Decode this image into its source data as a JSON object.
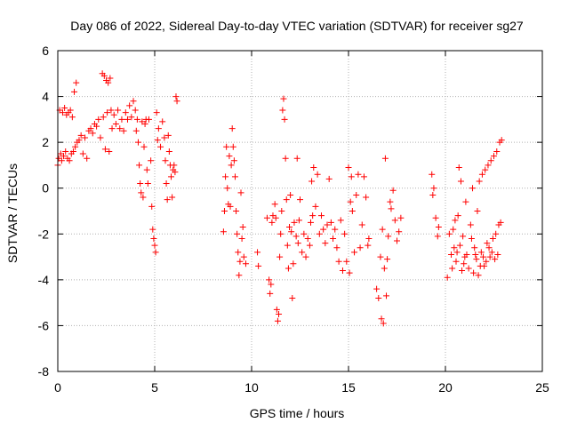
{
  "chart_data": {
    "type": "scatter",
    "title": "Day 086 of 2022, Sidereal Day-to-day VTEC variation (SDTVAR) for receiver sg27",
    "xlabel": "GPS time / hours",
    "ylabel": "SDTVAR / TECUs",
    "xlim": [
      0,
      25
    ],
    "ylim": [
      -8,
      6
    ],
    "xticks": [
      0,
      5,
      10,
      15,
      20,
      25
    ],
    "yticks": [
      -8,
      -6,
      -4,
      -2,
      0,
      2,
      4,
      6
    ],
    "grid": true,
    "marker": "plus",
    "color": "#ff0000",
    "series": [
      {
        "name": "SDTVAR",
        "points": [
          [
            0.0,
            1.0
          ],
          [
            0.05,
            1.3
          ],
          [
            0.1,
            3.4
          ],
          [
            0.15,
            1.5
          ],
          [
            0.2,
            1.2
          ],
          [
            0.25,
            3.3
          ],
          [
            0.3,
            1.4
          ],
          [
            0.35,
            3.5
          ],
          [
            0.4,
            1.6
          ],
          [
            0.45,
            3.2
          ],
          [
            0.5,
            1.3
          ],
          [
            0.55,
            3.3
          ],
          [
            0.6,
            1.2
          ],
          [
            0.65,
            3.4
          ],
          [
            0.7,
            1.5
          ],
          [
            0.75,
            3.1
          ],
          [
            0.8,
            1.6
          ],
          [
            0.85,
            4.2
          ],
          [
            0.9,
            1.8
          ],
          [
            0.95,
            4.6
          ],
          [
            1.0,
            2.0
          ],
          [
            1.1,
            2.1
          ],
          [
            1.2,
            2.3
          ],
          [
            1.3,
            1.5
          ],
          [
            1.4,
            2.2
          ],
          [
            1.5,
            1.3
          ],
          [
            1.6,
            2.5
          ],
          [
            1.7,
            2.6
          ],
          [
            1.8,
            2.4
          ],
          [
            1.9,
            2.8
          ],
          [
            2.0,
            2.7
          ],
          [
            2.1,
            3.0
          ],
          [
            2.2,
            2.2
          ],
          [
            2.3,
            5.0
          ],
          [
            2.35,
            3.1
          ],
          [
            2.4,
            4.9
          ],
          [
            2.45,
            1.7
          ],
          [
            2.5,
            4.7
          ],
          [
            2.55,
            3.3
          ],
          [
            2.6,
            4.6
          ],
          [
            2.65,
            1.6
          ],
          [
            2.7,
            4.8
          ],
          [
            2.75,
            3.4
          ],
          [
            2.8,
            2.6
          ],
          [
            2.9,
            3.2
          ],
          [
            3.0,
            2.8
          ],
          [
            3.1,
            3.4
          ],
          [
            3.2,
            2.6
          ],
          [
            3.3,
            3.0
          ],
          [
            3.4,
            2.5
          ],
          [
            3.5,
            3.3
          ],
          [
            3.6,
            3.0
          ],
          [
            3.7,
            3.6
          ],
          [
            3.8,
            3.1
          ],
          [
            3.9,
            3.8
          ],
          [
            4.0,
            3.4
          ],
          [
            4.05,
            2.5
          ],
          [
            4.1,
            3.0
          ],
          [
            4.15,
            2.0
          ],
          [
            4.2,
            1.0
          ],
          [
            4.25,
            0.2
          ],
          [
            4.3,
            -0.2
          ],
          [
            4.35,
            2.9
          ],
          [
            4.4,
            -0.4
          ],
          [
            4.45,
            1.8
          ],
          [
            4.5,
            2.8
          ],
          [
            4.55,
            3.0
          ],
          [
            4.6,
            0.8
          ],
          [
            4.65,
            0.2
          ],
          [
            4.7,
            3.0
          ],
          [
            4.8,
            1.2
          ],
          [
            4.85,
            -0.8
          ],
          [
            4.9,
            -1.8
          ],
          [
            4.95,
            -2.2
          ],
          [
            5.0,
            -2.5
          ],
          [
            5.05,
            -2.8
          ],
          [
            5.1,
            3.3
          ],
          [
            5.15,
            2.1
          ],
          [
            5.2,
            2.6
          ],
          [
            5.3,
            1.8
          ],
          [
            5.4,
            2.9
          ],
          [
            5.5,
            2.2
          ],
          [
            5.55,
            1.2
          ],
          [
            5.6,
            0.2
          ],
          [
            5.65,
            -0.5
          ],
          [
            5.7,
            2.3
          ],
          [
            5.75,
            1.6
          ],
          [
            5.8,
            1.0
          ],
          [
            5.85,
            0.5
          ],
          [
            5.9,
            -0.4
          ],
          [
            5.95,
            0.8
          ],
          [
            6.0,
            1.0
          ],
          [
            6.05,
            0.7
          ],
          [
            6.1,
            4.0
          ],
          [
            6.15,
            3.8
          ],
          [
            8.55,
            -1.9
          ],
          [
            8.6,
            -1.0
          ],
          [
            8.65,
            0.5
          ],
          [
            8.7,
            1.8
          ],
          [
            8.75,
            0.0
          ],
          [
            8.8,
            -0.7
          ],
          [
            8.85,
            1.4
          ],
          [
            8.9,
            -0.8
          ],
          [
            8.95,
            1.0
          ],
          [
            9.0,
            2.6
          ],
          [
            9.05,
            1.8
          ],
          [
            9.1,
            1.2
          ],
          [
            9.15,
            0.5
          ],
          [
            9.2,
            -1.0
          ],
          [
            9.25,
            -2.0
          ],
          [
            9.3,
            -2.8
          ],
          [
            9.35,
            -3.8
          ],
          [
            9.4,
            -3.2
          ],
          [
            9.45,
            -0.2
          ],
          [
            9.5,
            -2.2
          ],
          [
            9.55,
            -1.7
          ],
          [
            9.6,
            -3.0
          ],
          [
            9.7,
            -3.3
          ],
          [
            10.3,
            -2.8
          ],
          [
            10.35,
            -3.4
          ],
          [
            10.8,
            -1.3
          ],
          [
            10.9,
            -4.0
          ],
          [
            10.95,
            -4.6
          ],
          [
            11.0,
            -4.2
          ],
          [
            11.05,
            -1.5
          ],
          [
            11.1,
            -1.2
          ],
          [
            11.2,
            -0.7
          ],
          [
            11.25,
            -1.3
          ],
          [
            11.3,
            -5.3
          ],
          [
            11.35,
            -5.8
          ],
          [
            11.4,
            -5.5
          ],
          [
            11.45,
            -3.0
          ],
          [
            11.5,
            -2.0
          ],
          [
            11.55,
            -1.0
          ],
          [
            11.6,
            3.4
          ],
          [
            11.65,
            3.9
          ],
          [
            11.7,
            3.0
          ],
          [
            11.75,
            1.3
          ],
          [
            11.8,
            -0.5
          ],
          [
            11.85,
            -2.5
          ],
          [
            11.9,
            -3.5
          ],
          [
            11.95,
            -1.7
          ],
          [
            12.0,
            -0.3
          ],
          [
            12.05,
            -1.9
          ],
          [
            12.1,
            -4.8
          ],
          [
            12.15,
            -3.3
          ],
          [
            12.2,
            -1.5
          ],
          [
            12.3,
            -2.1
          ],
          [
            12.35,
            1.3
          ],
          [
            12.4,
            -2.4
          ],
          [
            12.45,
            -1.4
          ],
          [
            12.5,
            -0.5
          ],
          [
            12.6,
            -2.8
          ],
          [
            12.7,
            -2.0
          ],
          [
            12.8,
            -3.0
          ],
          [
            12.9,
            -2.2
          ],
          [
            13.0,
            -2.5
          ],
          [
            13.05,
            -1.5
          ],
          [
            13.1,
            0.3
          ],
          [
            13.15,
            -1.2
          ],
          [
            13.2,
            0.9
          ],
          [
            13.3,
            -0.8
          ],
          [
            13.4,
            0.6
          ],
          [
            13.5,
            -2.0
          ],
          [
            13.6,
            -1.2
          ],
          [
            13.7,
            -1.8
          ],
          [
            13.8,
            -2.4
          ],
          [
            13.9,
            -1.6
          ],
          [
            14.0,
            0.4
          ],
          [
            14.1,
            -1.5
          ],
          [
            14.2,
            -2.2
          ],
          [
            14.3,
            -1.8
          ],
          [
            14.4,
            -2.6
          ],
          [
            14.5,
            -3.2
          ],
          [
            14.6,
            -1.4
          ],
          [
            14.7,
            -3.6
          ],
          [
            14.8,
            -2.0
          ],
          [
            14.9,
            -3.2
          ],
          [
            15.0,
            0.9
          ],
          [
            15.05,
            -3.7
          ],
          [
            15.1,
            -0.6
          ],
          [
            15.15,
            0.5
          ],
          [
            15.2,
            -1.0
          ],
          [
            15.3,
            -2.8
          ],
          [
            15.4,
            -0.3
          ],
          [
            15.5,
            0.6
          ],
          [
            15.6,
            -2.6
          ],
          [
            15.7,
            -1.6
          ],
          [
            15.8,
            0.5
          ],
          [
            15.9,
            -0.4
          ],
          [
            16.0,
            -2.5
          ],
          [
            16.05,
            -2.2
          ],
          [
            16.45,
            -4.4
          ],
          [
            16.55,
            -4.8
          ],
          [
            16.65,
            -3.0
          ],
          [
            16.7,
            -5.7
          ],
          [
            16.75,
            -1.8
          ],
          [
            16.8,
            -5.9
          ],
          [
            16.85,
            -3.5
          ],
          [
            16.9,
            1.3
          ],
          [
            16.95,
            -4.7
          ],
          [
            17.0,
            -3.1
          ],
          [
            17.05,
            -2.1
          ],
          [
            17.15,
            -0.6
          ],
          [
            17.2,
            -0.9
          ],
          [
            17.3,
            -0.1
          ],
          [
            17.4,
            -1.4
          ],
          [
            17.5,
            -2.3
          ],
          [
            17.6,
            -1.9
          ],
          [
            17.7,
            -1.3
          ],
          [
            19.3,
            0.6
          ],
          [
            19.35,
            -0.3
          ],
          [
            19.4,
            0.0
          ],
          [
            19.5,
            -1.3
          ],
          [
            19.6,
            -2.1
          ],
          [
            19.65,
            -1.7
          ],
          [
            20.1,
            -3.9
          ],
          [
            20.2,
            -2.0
          ],
          [
            20.3,
            -2.9
          ],
          [
            20.35,
            -3.5
          ],
          [
            20.4,
            -1.8
          ],
          [
            20.45,
            -2.6
          ],
          [
            20.5,
            -1.4
          ],
          [
            20.55,
            -3.2
          ],
          [
            20.6,
            -2.8
          ],
          [
            20.65,
            -1.2
          ],
          [
            20.7,
            0.9
          ],
          [
            20.75,
            -2.5
          ],
          [
            20.8,
            0.3
          ],
          [
            20.85,
            -3.6
          ],
          [
            20.9,
            -2.1
          ],
          [
            20.95,
            -3.3
          ],
          [
            21.0,
            -3.0
          ],
          [
            21.05,
            -0.6
          ],
          [
            21.1,
            -2.9
          ],
          [
            21.2,
            -3.5
          ],
          [
            21.3,
            -1.6
          ],
          [
            21.35,
            -2.2
          ],
          [
            21.4,
            0.0
          ],
          [
            21.45,
            -3.7
          ],
          [
            21.5,
            -2.6
          ],
          [
            21.55,
            -2.9
          ],
          [
            21.6,
            -3.1
          ],
          [
            21.65,
            -1.0
          ],
          [
            21.7,
            -3.8
          ],
          [
            21.75,
            0.3
          ],
          [
            21.8,
            -3.4
          ],
          [
            21.85,
            -2.8
          ],
          [
            21.9,
            0.6
          ],
          [
            21.95,
            -3.0
          ],
          [
            22.0,
            -3.4
          ],
          [
            22.05,
            0.8
          ],
          [
            22.1,
            -3.2
          ],
          [
            22.15,
            -2.4
          ],
          [
            22.2,
            1.0
          ],
          [
            22.25,
            -2.6
          ],
          [
            22.3,
            -3.0
          ],
          [
            22.35,
            1.2
          ],
          [
            22.4,
            -2.8
          ],
          [
            22.45,
            -2.2
          ],
          [
            22.5,
            1.4
          ],
          [
            22.55,
            -3.1
          ],
          [
            22.6,
            -2.0
          ],
          [
            22.65,
            1.6
          ],
          [
            22.7,
            -2.9
          ],
          [
            22.75,
            -1.6
          ],
          [
            22.8,
            2.0
          ],
          [
            22.85,
            -1.5
          ],
          [
            22.9,
            2.1
          ]
        ]
      }
    ]
  }
}
